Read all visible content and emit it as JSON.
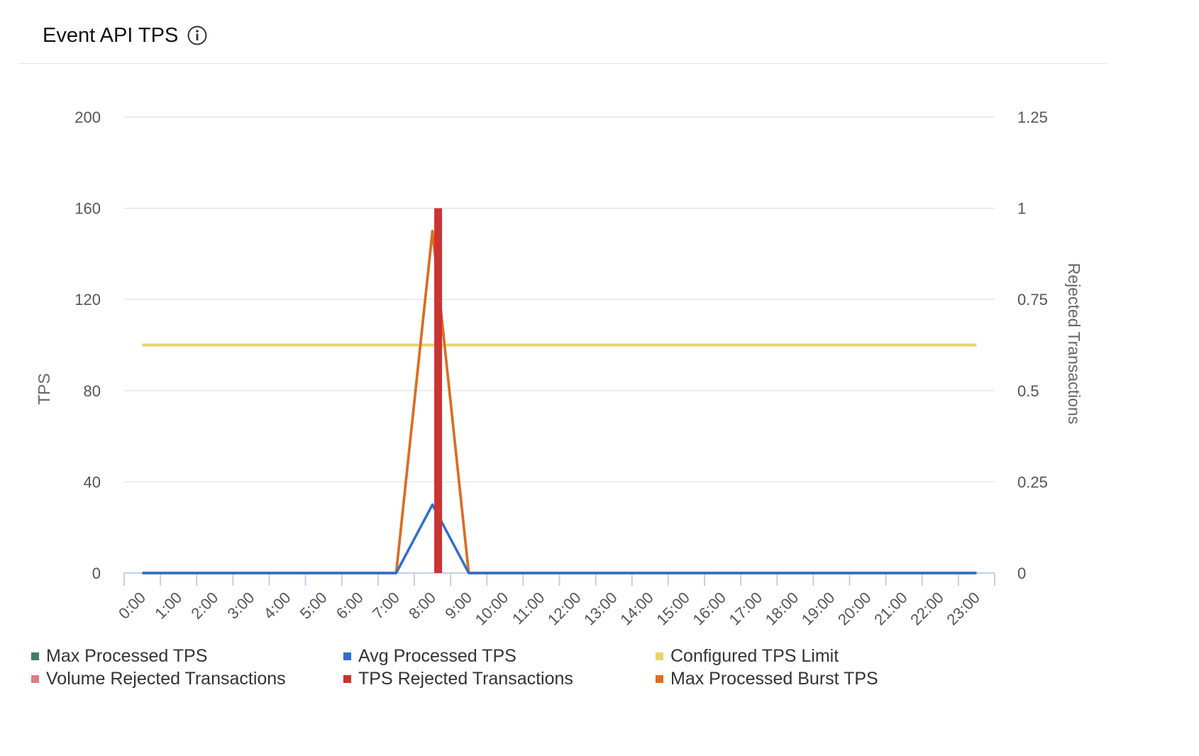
{
  "panel": {
    "title": "Event API TPS",
    "info_icon": "info-circle-icon"
  },
  "chart_data": {
    "type": "line",
    "title": "",
    "x": [
      "0:00",
      "1:00",
      "2:00",
      "3:00",
      "4:00",
      "5:00",
      "6:00",
      "7:00",
      "8:00",
      "9:00",
      "10:00",
      "11:00",
      "12:00",
      "13:00",
      "14:00",
      "15:00",
      "16:00",
      "17:00",
      "18:00",
      "19:00",
      "20:00",
      "21:00",
      "22:00",
      "23:00"
    ],
    "y_left": {
      "label": "TPS",
      "ylim": [
        0,
        200
      ],
      "ticks": [
        "0",
        "40",
        "80",
        "120",
        "160",
        "200"
      ]
    },
    "y_right": {
      "label": "Rejected Transactions",
      "ylim": [
        0,
        1.25
      ],
      "ticks": [
        "0",
        "0.25",
        "0.5",
        "0.75",
        "1",
        "1.25"
      ]
    },
    "grid": true,
    "legend_position": "bottom",
    "series": [
      {
        "name": "Max Processed TPS",
        "type": "line",
        "axis": "left",
        "color": "#3f7f5f",
        "values": [
          0,
          0,
          0,
          0,
          0,
          0,
          0,
          0,
          150,
          0,
          0,
          0,
          0,
          0,
          0,
          0,
          0,
          0,
          0,
          0,
          0,
          0,
          0,
          0
        ]
      },
      {
        "name": "Avg Processed TPS",
        "type": "line",
        "axis": "left",
        "color": "#2f6fd0",
        "values": [
          0,
          0,
          0,
          0,
          0,
          0,
          0,
          0,
          30,
          0,
          0,
          0,
          0,
          0,
          0,
          0,
          0,
          0,
          0,
          0,
          0,
          0,
          0,
          0
        ]
      },
      {
        "name": "Configured TPS Limit",
        "type": "line",
        "axis": "left",
        "color": "#e6d36b",
        "values": [
          100,
          100,
          100,
          100,
          100,
          100,
          100,
          100,
          100,
          100,
          100,
          100,
          100,
          100,
          100,
          100,
          100,
          100,
          100,
          100,
          100,
          100,
          100,
          100
        ]
      },
      {
        "name": "Volume Rejected Transactions",
        "type": "bar",
        "axis": "right",
        "color": "#e07a8c",
        "values": [
          0,
          0,
          0,
          0,
          0,
          0,
          0,
          0,
          0,
          0,
          0,
          0,
          0,
          0,
          0,
          0,
          0,
          0,
          0,
          0,
          0,
          0,
          0,
          0
        ]
      },
      {
        "name": "TPS Rejected Transactions",
        "type": "bar",
        "axis": "right",
        "color": "#cc3333",
        "values": [
          0,
          0,
          0,
          0,
          0,
          0,
          0,
          0,
          1,
          0,
          0,
          0,
          0,
          0,
          0,
          0,
          0,
          0,
          0,
          0,
          0,
          0,
          0,
          0
        ]
      },
      {
        "name": "Max Processed Burst TPS",
        "type": "line",
        "axis": "left",
        "color": "#e06b1e",
        "values": [
          0,
          0,
          0,
          0,
          0,
          0,
          0,
          0,
          150,
          0,
          0,
          0,
          0,
          0,
          0,
          0,
          0,
          0,
          0,
          0,
          0,
          0,
          0,
          0
        ]
      }
    ]
  }
}
